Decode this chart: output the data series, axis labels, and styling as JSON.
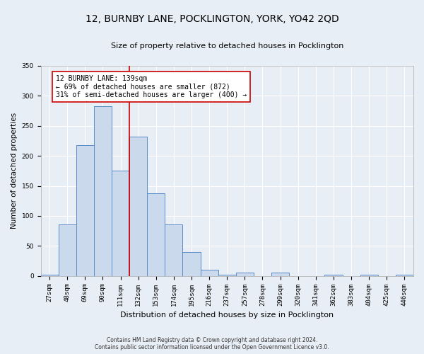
{
  "title": "12, BURNBY LANE, POCKLINGTON, YORK, YO42 2QD",
  "subtitle": "Size of property relative to detached houses in Pocklington",
  "xlabel": "Distribution of detached houses by size in Pocklington",
  "ylabel": "Number of detached properties",
  "footer_line1": "Contains HM Land Registry data © Crown copyright and database right 2024.",
  "footer_line2": "Contains public sector information licensed under the Open Government Licence v3.0.",
  "categories": [
    "27sqm",
    "48sqm",
    "69sqm",
    "90sqm",
    "111sqm",
    "132sqm",
    "153sqm",
    "174sqm",
    "195sqm",
    "216sqm",
    "237sqm",
    "257sqm",
    "278sqm",
    "299sqm",
    "320sqm",
    "341sqm",
    "362sqm",
    "383sqm",
    "404sqm",
    "425sqm",
    "446sqm"
  ],
  "values": [
    2,
    86,
    218,
    283,
    175,
    232,
    138,
    86,
    40,
    10,
    2,
    6,
    0,
    5,
    0,
    0,
    2,
    0,
    2,
    0,
    2
  ],
  "bar_color": "#cad9eb",
  "bar_edge_color": "#5b8cc8",
  "background_color": "#e8eef5",
  "grid_color": "#ffffff",
  "vline_x": 4.5,
  "vline_color": "#cc0000",
  "annotation_text": "12 BURNBY LANE: 139sqm\n← 69% of detached houses are smaller (872)\n31% of semi-detached houses are larger (400) →",
  "annotation_box_color": "#ffffff",
  "annotation_box_edge_color": "#cc0000",
  "ylim": [
    0,
    350
  ],
  "yticks": [
    0,
    50,
    100,
    150,
    200,
    250,
    300,
    350
  ],
  "title_fontsize": 10,
  "subtitle_fontsize": 8,
  "annotation_fontsize": 7,
  "ylabel_fontsize": 7.5,
  "xlabel_fontsize": 8,
  "tick_fontsize": 6.5,
  "footer_fontsize": 5.5
}
